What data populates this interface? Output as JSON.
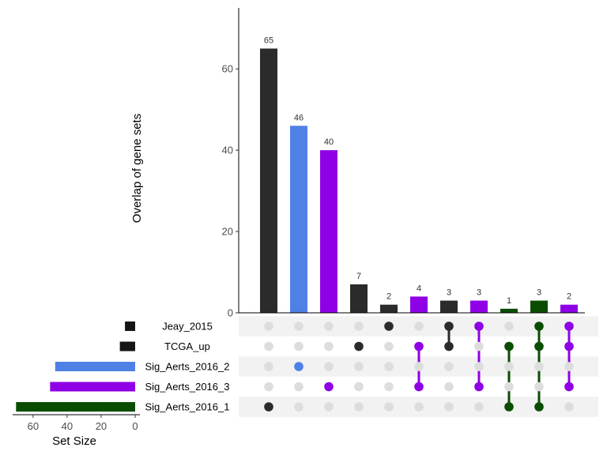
{
  "chart_data": {
    "type": "upset",
    "ylabel": "Overlap of gene sets",
    "ylim": [
      0,
      75
    ],
    "y_ticks": [
      0,
      20,
      40,
      60
    ],
    "set_size_label": "Set Size",
    "set_size_xlim": [
      0,
      72
    ],
    "set_size_ticks": [
      60,
      40,
      20,
      0
    ],
    "colors": {
      "dark": "#2b2b2b",
      "blue": "#4f81e5",
      "purple": "#8f00e6",
      "green": "#0b4d00",
      "set_black": "#151515",
      "dot_empty": "#dddddd",
      "stripe": "#f2f2f2"
    },
    "sets": [
      {
        "name": "Jeay_2015",
        "size": 6,
        "color": "set_black"
      },
      {
        "name": "TCGA_up",
        "size": 9,
        "color": "set_black"
      },
      {
        "name": "Sig_Aerts_2016_2",
        "size": 47,
        "color": "blue"
      },
      {
        "name": "Sig_Aerts_2016_3",
        "size": 50,
        "color": "purple"
      },
      {
        "name": "Sig_Aerts_2016_1",
        "size": 70,
        "color": "green"
      }
    ],
    "intersections": [
      {
        "value": 65,
        "label": "65",
        "sets": [
          4
        ],
        "color": "dark"
      },
      {
        "value": 46,
        "label": "46",
        "sets": [
          2
        ],
        "color": "blue"
      },
      {
        "value": 40,
        "label": "40",
        "sets": [
          3
        ],
        "color": "purple"
      },
      {
        "value": 7,
        "label": "7",
        "sets": [
          1
        ],
        "color": "dark"
      },
      {
        "value": 2,
        "label": "2",
        "sets": [
          0
        ],
        "color": "dark"
      },
      {
        "value": 4,
        "label": "4",
        "sets": [
          1,
          3
        ],
        "color": "purple"
      },
      {
        "value": 3,
        "label": "3",
        "sets": [
          0,
          1
        ],
        "color": "dark"
      },
      {
        "value": 3,
        "label": "3",
        "sets": [
          0,
          3
        ],
        "color": "purple"
      },
      {
        "value": 1,
        "label": "1",
        "sets": [
          1,
          4
        ],
        "color": "green"
      },
      {
        "value": 3,
        "label": "3",
        "sets": [
          0,
          1,
          4
        ],
        "color": "green"
      },
      {
        "value": 2,
        "label": "2",
        "sets": [
          0,
          1,
          3
        ],
        "color": "purple"
      }
    ]
  }
}
